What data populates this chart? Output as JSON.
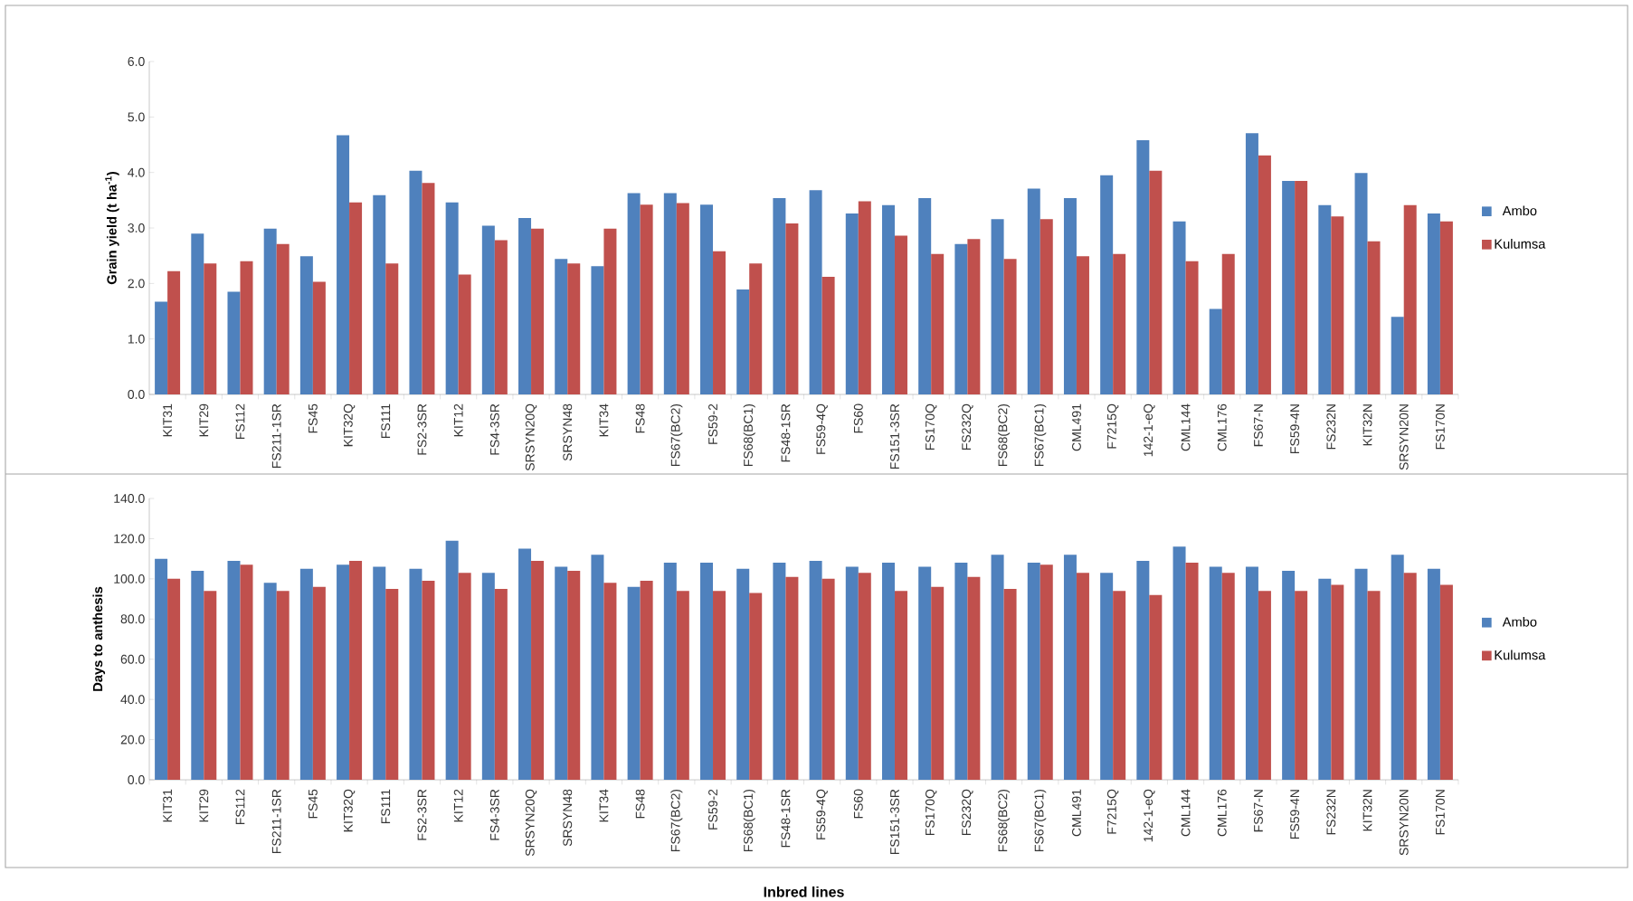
{
  "chart_data": [
    {
      "type": "bar",
      "ylabel": "Grain yield (t ha$^{-1}$)",
      "legend": "right",
      "categories": [
        "KIT31",
        "KIT29",
        "FS112",
        "FS211-1SR",
        "FS45",
        "KIT32Q",
        "FS111",
        "FS2-3SR",
        "KIT12",
        "FS4-3SR",
        "SRSYN20Q",
        "SRSYN48",
        "KIT34",
        "FS48",
        "FS67(BC2)",
        "FS59-2",
        "FS68(BC1)",
        "FS48-1SR",
        "FS59-4Q",
        "FS60",
        "FS151-3SR",
        "FS170Q",
        "FS232Q",
        "FS68(BC2)",
        "FS67(BC1)",
        "CML491",
        "F7215Q",
        "142-1-eQ",
        "CML144",
        "CML176",
        "FS67-N",
        "FS59-4N",
        "FS232N",
        "KIT32N",
        "SRSYN20N",
        "FS170N"
      ],
      "series": [
        {
          "name": "Ambo",
          "color": "#4f81bd",
          "values": [
            1.67,
            2.9,
            1.85,
            2.99,
            2.49,
            4.67,
            3.59,
            4.03,
            3.46,
            3.04,
            3.18,
            2.44,
            2.31,
            3.63,
            3.63,
            3.42,
            1.89,
            3.54,
            3.68,
            3.26,
            3.41,
            3.54,
            2.71,
            3.16,
            3.71,
            3.54,
            3.95,
            4.58,
            3.12,
            1.54,
            4.71,
            3.85,
            3.41,
            3.99,
            1.4,
            3.26
          ]
        },
        {
          "name": "Kulumsa",
          "color": "#c0504d",
          "values": [
            2.22,
            2.36,
            2.4,
            2.71,
            2.03,
            3.46,
            2.36,
            3.81,
            2.16,
            2.78,
            2.99,
            2.36,
            2.99,
            3.42,
            3.45,
            2.58,
            2.36,
            3.08,
            2.12,
            3.48,
            2.86,
            2.53,
            2.8,
            2.44,
            3.16,
            2.49,
            2.53,
            4.03,
            2.4,
            2.53,
            4.31,
            3.85,
            3.21,
            2.76,
            3.41,
            3.12
          ]
        }
      ],
      "ylim": [
        0,
        6
      ],
      "yticks": [
        {
          "value": 0,
          "label": "0.0"
        },
        {
          "value": 1,
          "label": "1.0"
        },
        {
          "value": 2,
          "label": "2.0"
        },
        {
          "value": 3,
          "label": "3.0"
        },
        {
          "value": 4,
          "label": "4.0"
        },
        {
          "value": 5,
          "label": "5.0"
        },
        {
          "value": 6,
          "label": "6.0"
        }
      ]
    },
    {
      "type": "bar",
      "ylabel": "Days to anthesis",
      "xlabel": "Inbred lines",
      "legend": "right",
      "categories": [
        "KIT31",
        "KIT29",
        "FS112",
        "FS211-1SR",
        "FS45",
        "KIT32Q",
        "FS111",
        "FS2-3SR",
        "KIT12",
        "FS4-3SR",
        "SRSYN20Q",
        "SRSYN48",
        "KIT34",
        "FS48",
        "FS67(BC2)",
        "FS59-2",
        "FS68(BC1)",
        "FS48-1SR",
        "FS59-4Q",
        "FS60",
        "FS151-3SR",
        "FS170Q",
        "FS232Q",
        "FS68(BC2)",
        "FS67(BC1)",
        "CML491",
        "F7215Q",
        "142-1-eQ",
        "CML144",
        "CML176",
        "FS67-N",
        "FS59-4N",
        "FS232N",
        "KIT32N",
        "SRSYN20N",
        "FS170N"
      ],
      "series": [
        {
          "name": "Ambo",
          "color": "#4f81bd",
          "values": [
            110,
            104,
            109,
            98,
            105,
            107,
            106,
            105,
            119,
            103,
            115,
            106,
            112,
            96,
            108,
            108,
            105,
            108,
            109,
            106,
            108,
            106,
            108,
            112,
            108,
            112,
            103,
            109,
            116,
            106,
            106,
            104,
            100,
            105,
            112,
            105
          ]
        },
        {
          "name": "Kulumsa",
          "color": "#c0504d",
          "values": [
            100,
            94,
            107,
            94,
            96,
            109,
            95,
            99,
            103,
            95,
            109,
            104,
            98,
            99,
            94,
            94,
            93,
            101,
            100,
            103,
            94,
            96,
            101,
            95,
            107,
            103,
            94,
            92,
            108,
            103,
            94,
            94,
            97,
            94,
            103,
            97
          ]
        }
      ],
      "ylim": [
        0,
        140
      ],
      "yticks": [
        {
          "value": 0,
          "label": "0.0"
        },
        {
          "value": 20,
          "label": "20.0"
        },
        {
          "value": 40,
          "label": "40.0"
        },
        {
          "value": 60,
          "label": "60.0"
        },
        {
          "value": 80,
          "label": "80.0"
        },
        {
          "value": 100,
          "label": "100.0"
        },
        {
          "value": 120,
          "label": "120.0"
        },
        {
          "value": 140,
          "label": "140.0"
        }
      ]
    }
  ]
}
